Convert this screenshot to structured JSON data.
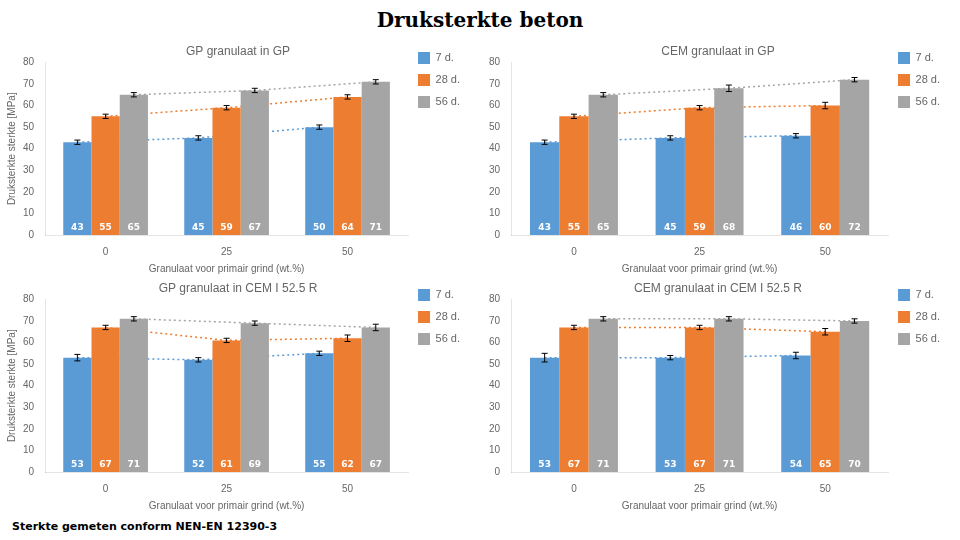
{
  "title": "Druksterkte beton",
  "subtitle": "Sterkte gemeten conform NEN-EN 12390-3",
  "chart_data": [
    {
      "type": "bar",
      "title": "GP granulaat in GP",
      "categories": [
        "0",
        "25",
        "50"
      ],
      "x_label": "Granulaat voor primair grind (wt.%)",
      "y_label": "Druksterkte sterkte [MPa]",
      "series": [
        {
          "name": "7 d.",
          "color": "#5B9BD5",
          "values": [
            43,
            45,
            50
          ],
          "errors": [
            1.0,
            1.0,
            1.0
          ]
        },
        {
          "name": "28 d.",
          "color": "#ED7D31",
          "values": [
            55,
            59,
            64
          ],
          "errors": [
            1.0,
            1.0,
            1.0
          ]
        },
        {
          "name": "56 d.",
          "color": "#A5A5A5",
          "values": [
            65,
            67,
            71
          ],
          "errors": [
            1.0,
            1.0,
            1.0
          ]
        }
      ],
      "ylim": [
        0,
        80
      ],
      "yticks": [
        0,
        10,
        20,
        30,
        40,
        50,
        60,
        70,
        80
      ],
      "grid": false,
      "legend": "right",
      "data_labels": true
    },
    {
      "type": "bar",
      "title": "CEM granulaat in GP",
      "categories": [
        "0",
        "25",
        "50"
      ],
      "x_label": "Granulaat voor primair grind (wt.%)",
      "series": [
        {
          "name": "7 d.",
          "color": "#5B9BD5",
          "values": [
            43,
            45,
            46
          ],
          "errors": [
            1.0,
            1.0,
            1.0
          ]
        },
        {
          "name": "28 d.",
          "color": "#ED7D31",
          "values": [
            55,
            59,
            60
          ],
          "errors": [
            1.0,
            1.0,
            1.5
          ]
        },
        {
          "name": "56 d.",
          "color": "#A5A5A5",
          "values": [
            65,
            68,
            72
          ],
          "errors": [
            1.0,
            1.5,
            1.0
          ]
        }
      ],
      "ylim": [
        0,
        80
      ],
      "yticks": [
        0,
        10,
        20,
        30,
        40,
        50,
        60,
        70,
        80
      ],
      "grid": false,
      "legend": "right",
      "data_labels": true
    },
    {
      "type": "bar",
      "title": "GP granulaat in CEM I 52.5 R",
      "categories": [
        "0",
        "25",
        "50"
      ],
      "x_label": "Granulaat voor primair grind (wt.%)",
      "y_label": "Druksterkte sterkte [MPa]",
      "series": [
        {
          "name": "7 d.",
          "color": "#5B9BD5",
          "values": [
            53,
            52,
            55
          ],
          "errors": [
            1.5,
            1.0,
            1.0
          ]
        },
        {
          "name": "28 d.",
          "color": "#ED7D31",
          "values": [
            67,
            61,
            62
          ],
          "errors": [
            1.0,
            1.0,
            1.5
          ]
        },
        {
          "name": "56 d.",
          "color": "#A5A5A5",
          "values": [
            71,
            69,
            67
          ],
          "errors": [
            1.0,
            1.0,
            1.5
          ]
        }
      ],
      "ylim": [
        0,
        80
      ],
      "yticks": [
        0,
        10,
        20,
        30,
        40,
        50,
        60,
        70,
        80
      ],
      "grid": false,
      "legend": "right",
      "data_labels": true
    },
    {
      "type": "bar",
      "title": "CEM granulaat in CEM I 52.5 R",
      "categories": [
        "0",
        "25",
        "50"
      ],
      "x_label": "Granulaat voor primair grind (wt.%)",
      "series": [
        {
          "name": "7 d.",
          "color": "#5B9BD5",
          "values": [
            53,
            53,
            54
          ],
          "errors": [
            2.0,
            1.0,
            1.5
          ]
        },
        {
          "name": "28 d.",
          "color": "#ED7D31",
          "values": [
            67,
            67,
            65
          ],
          "errors": [
            1.0,
            1.0,
            1.5
          ]
        },
        {
          "name": "56 d.",
          "color": "#A5A5A5",
          "values": [
            71,
            71,
            70
          ],
          "errors": [
            1.0,
            1.0,
            1.0
          ]
        }
      ],
      "ylim": [
        0,
        80
      ],
      "yticks": [
        0,
        10,
        20,
        30,
        40,
        50,
        60,
        70,
        80
      ],
      "grid": false,
      "legend": "right",
      "data_labels": true
    }
  ]
}
